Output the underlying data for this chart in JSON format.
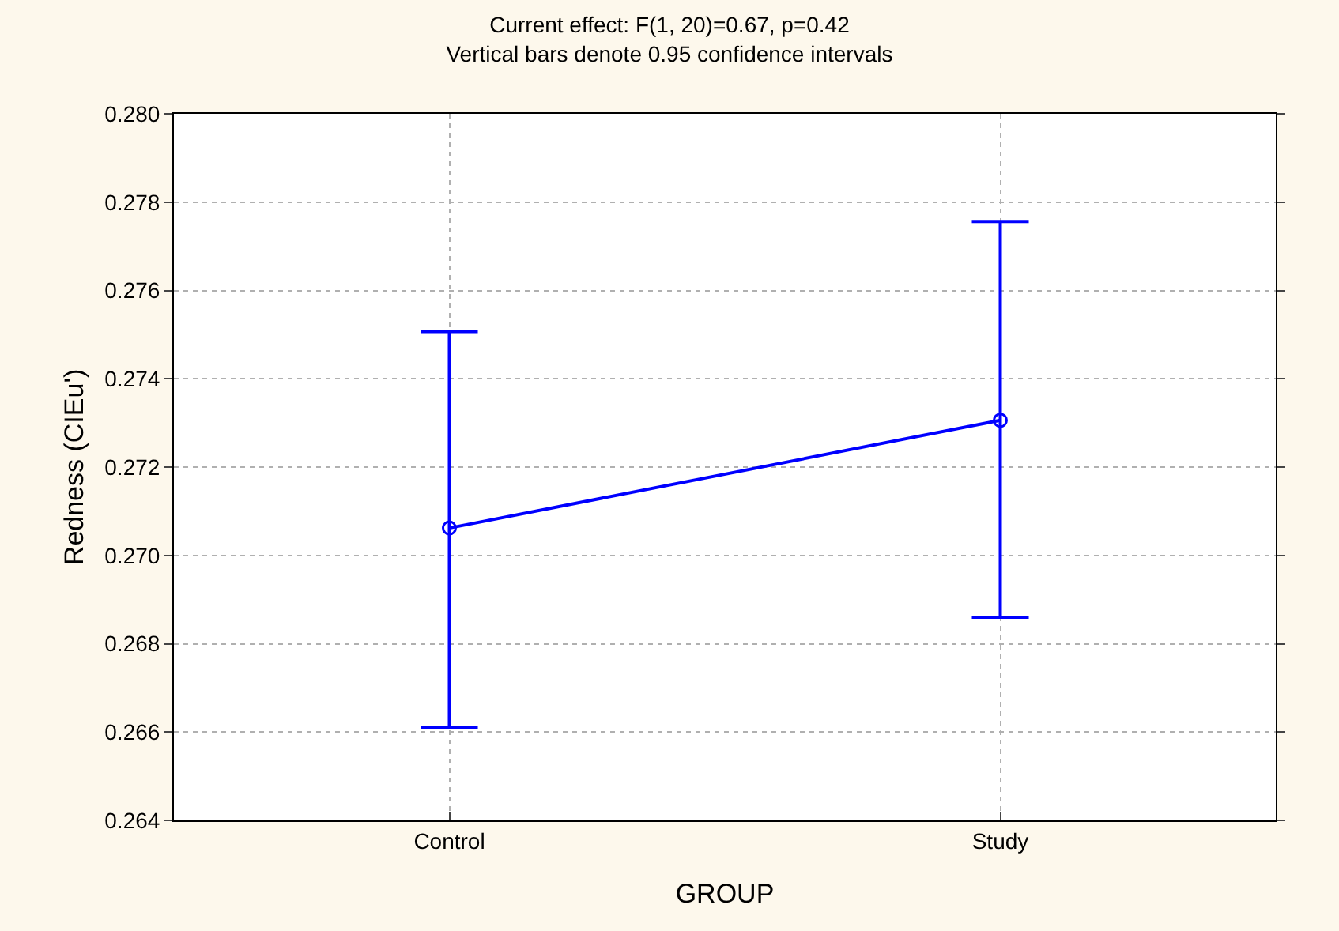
{
  "chart_data": {
    "type": "line",
    "title": "Current effect: F(1, 20)=0.67, p=0.42",
    "subtitle": "Vertical bars denote 0.95 confidence intervals",
    "xlabel": "GROUP",
    "ylabel": "Redness (CIEu')",
    "categories": [
      "Control",
      "Study"
    ],
    "series": [
      {
        "color": "#0000ff",
        "values": [
          0.27062,
          0.27306
        ],
        "errors": [
          [
            0.26611,
            0.27507
          ],
          [
            0.2686,
            0.27756
          ]
        ]
      }
    ],
    "ylim": [
      0.264,
      0.28
    ],
    "yticks": [
      0.264,
      0.266,
      0.268,
      {
        "value": 0.27,
        "label": "0.270"
      },
      0.272,
      0.274,
      0.276,
      0.278,
      {
        "value": 0.28,
        "label": "0.280"
      }
    ],
    "grid": true,
    "marker": "circle",
    "line_style": "solid"
  }
}
